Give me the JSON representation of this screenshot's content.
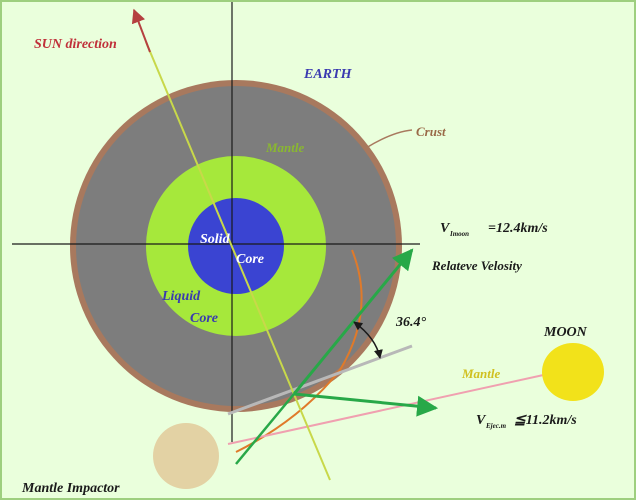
{
  "labels": {
    "sun_direction": "SUN direction",
    "earth": "EARTH",
    "crust": "Crust",
    "mantle": "Mantle",
    "solid": "Solid",
    "core_solid": "Core",
    "liquid": "Liquid",
    "core_liquid": "Core",
    "v_moon_sym": "V",
    "v_moon_sub": "Imoon",
    "v_moon_value": "=12.4km/s",
    "relative_velocity": "Relateve Velosity",
    "angle": "36.4°",
    "moon": "MOON",
    "moon_mantle": "Mantle",
    "v_earth_sym": "V",
    "v_earth_sub": "Ejec.m",
    "v_earth_value": "≦11.2km/s",
    "mantle_impactor": "Mantle Impactor"
  },
  "colors": {
    "background": "#eaffdc",
    "page_border": "#9ecf7f",
    "crust": "#a8795e",
    "mantle": "#7d7d7d",
    "liquid_core": "#a6e83b",
    "solid_core": "#3a44d2",
    "axes": "#1a1a1a",
    "sun_line": "#b54040",
    "yellow_line": "#c8d84a",
    "green_arrow": "#28a848",
    "orange_arc": "#e07a2a",
    "moon": "#f2e21a",
    "impactor": "#e3d2a4",
    "pink_line": "#f0a0b0",
    "gray_line": "#b8b8b8",
    "label_red": "#c0303a",
    "label_blue": "#3a3ab0",
    "label_green": "#8ab830",
    "label_brown": "#9a6a48",
    "label_dark": "#1a1a1a",
    "label_yellow": "#d0c020",
    "label_pink": "#e888a8"
  }
}
